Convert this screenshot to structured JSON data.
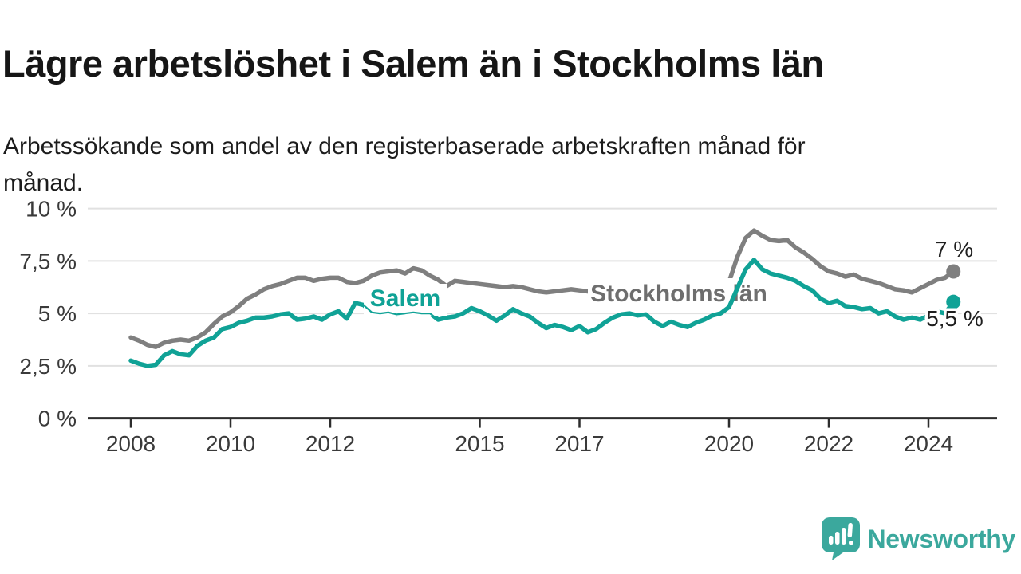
{
  "header": {
    "title": "Lägre arbetslöshet i Salem än i Stockholms län",
    "subtitle_line1": "Arbetssökande som andel av den registerbaserade arbetskraften månad för",
    "subtitle_line2": "månad."
  },
  "chart_data": {
    "type": "line",
    "unit": "%",
    "ylim": [
      0,
      10
    ],
    "xlim": [
      2007.15,
      2025.35
    ],
    "grid": "horizontal",
    "x_start": 2008,
    "x_step_years": 0.1666667,
    "x_end": 2024.5,
    "colors": {
      "gridline": "#e1e1e1",
      "axis": "#2d2d2d",
      "tick_text": "#3a3a3a",
      "value_label": "#1f1f1f",
      "background": "#ffffff"
    },
    "y_ticks": [
      {
        "value": 10,
        "label": "10 %"
      },
      {
        "value": 7.5,
        "label": "7,5 %"
      },
      {
        "value": 5,
        "label": "5 %"
      },
      {
        "value": 2.5,
        "label": "2,5 %"
      },
      {
        "value": 0,
        "label": "0 %"
      }
    ],
    "x_ticks": [
      {
        "year": 2008,
        "label": "2008"
      },
      {
        "year": 2010,
        "label": "2010"
      },
      {
        "year": 2012,
        "label": "2012"
      },
      {
        "year": 2015,
        "label": "2015"
      },
      {
        "year": 2017,
        "label": "2017"
      },
      {
        "year": 2020,
        "label": "2020"
      },
      {
        "year": 2022,
        "label": "2022"
      },
      {
        "year": 2024,
        "label": "2024"
      }
    ],
    "series": [
      {
        "name": "Stockholms län",
        "color": "#7f7f7f",
        "label_color": "#6e6e6e",
        "end_label": "7 %",
        "values": [
          3.85,
          3.7,
          3.5,
          3.4,
          3.6,
          3.7,
          3.75,
          3.7,
          3.85,
          4.1,
          4.5,
          4.85,
          5.05,
          5.35,
          5.7,
          5.9,
          6.15,
          6.3,
          6.4,
          6.55,
          6.7,
          6.7,
          6.55,
          6.65,
          6.7,
          6.7,
          6.5,
          6.45,
          6.55,
          6.8,
          6.95,
          7.0,
          7.05,
          6.9,
          7.15,
          7.05,
          6.8,
          6.6,
          6.3,
          6.55,
          6.5,
          6.45,
          6.4,
          6.35,
          6.3,
          6.25,
          6.3,
          6.25,
          6.15,
          6.05,
          6.0,
          6.05,
          6.1,
          6.15,
          6.1,
          6.05,
          6.0,
          6.05,
          6.1,
          6.05,
          6.0,
          6.05,
          6.1,
          6.05,
          6.0,
          6.05,
          6.1,
          6.15,
          6.2,
          6.25,
          6.3,
          6.4,
          6.5,
          7.7,
          8.6,
          8.95,
          8.7,
          8.5,
          8.45,
          8.5,
          8.15,
          7.9,
          7.6,
          7.25,
          7.0,
          6.9,
          6.75,
          6.85,
          6.65,
          6.55,
          6.45,
          6.3,
          6.15,
          6.1,
          6.0,
          6.2,
          6.4,
          6.6,
          6.7,
          7.0
        ]
      },
      {
        "name": "Salem",
        "color": "#10a296",
        "label_color": "#10a296",
        "end_label": "5,5 %",
        "values": [
          2.75,
          2.6,
          2.5,
          2.55,
          3.0,
          3.2,
          3.05,
          3.0,
          3.45,
          3.7,
          3.85,
          4.25,
          4.35,
          4.55,
          4.65,
          4.8,
          4.8,
          4.85,
          4.95,
          5.0,
          4.7,
          4.75,
          4.85,
          4.7,
          4.95,
          5.1,
          4.75,
          5.5,
          5.4,
          5.05,
          5.0,
          5.05,
          4.95,
          5.0,
          5.05,
          5.0,
          5.0,
          4.7,
          4.8,
          4.85,
          5.0,
          5.25,
          5.1,
          4.9,
          4.65,
          4.9,
          5.2,
          5.0,
          4.85,
          4.55,
          4.3,
          4.45,
          4.35,
          4.2,
          4.4,
          4.1,
          4.25,
          4.55,
          4.8,
          4.95,
          5.0,
          4.9,
          4.95,
          4.6,
          4.4,
          4.6,
          4.45,
          4.35,
          4.55,
          4.7,
          4.9,
          5.0,
          5.3,
          6.2,
          7.1,
          7.55,
          7.1,
          6.9,
          6.8,
          6.7,
          6.55,
          6.3,
          6.1,
          5.7,
          5.5,
          5.6,
          5.35,
          5.3,
          5.2,
          5.25,
          5.0,
          5.1,
          4.85,
          4.7,
          4.8,
          4.7,
          4.9,
          5.1,
          5.0,
          5.55
        ]
      }
    ]
  },
  "footer": {
    "brand": "Newsworthy",
    "brand_color": "#3ba89d"
  }
}
